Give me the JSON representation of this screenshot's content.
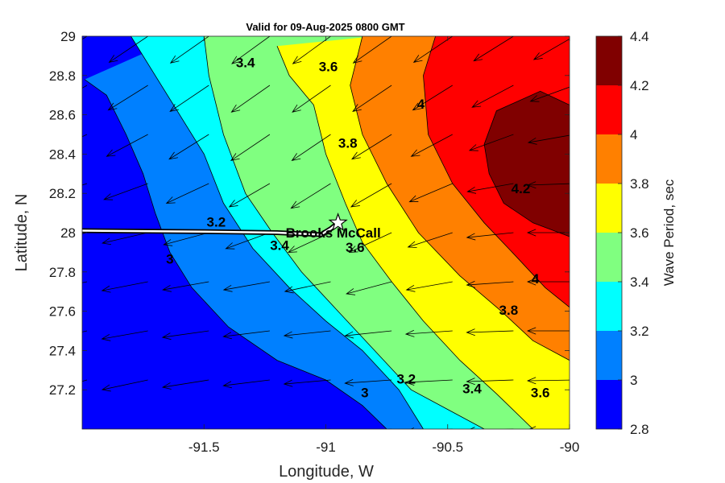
{
  "chart_data": {
    "type": "heatmap",
    "title": "Valid for 09-Aug-2025 0800 GMT",
    "xlabel": "Longitude, W",
    "ylabel": "Latitude, N",
    "colorbar_label": "Wave Period, sec",
    "xlim": [
      -92.0,
      -90.0
    ],
    "ylim": [
      27.0,
      29.0
    ],
    "x_ticks": [
      "-91.5",
      "-91",
      "-90.5",
      "-90"
    ],
    "y_ticks": [
      "27.2",
      "27.4",
      "27.6",
      "27.8",
      "28",
      "28.2",
      "28.4",
      "28.6",
      "28.8",
      "29"
    ],
    "colorbar_ticks": [
      "2.8",
      "3",
      "3.2",
      "3.4",
      "3.6",
      "3.8",
      "4",
      "4.2",
      "4.4"
    ],
    "levels": [
      2.8,
      3.0,
      3.2,
      3.4,
      3.6,
      3.8,
      4.0,
      4.2,
      4.4
    ],
    "colors": [
      "#0000ff",
      "#0080ff",
      "#00ffff",
      "#80ff80",
      "#ffff00",
      "#ff8000",
      "#ff0000",
      "#800000"
    ],
    "contours": [
      {
        "level": 3.0,
        "lon": [
          -91.99,
          -91.9,
          -91.82,
          -91.75,
          -91.7,
          -91.64,
          -91.55,
          -91.4,
          -91.2,
          -91.0,
          -90.85,
          -90.75
        ],
        "lat": [
          28.78,
          28.7,
          28.5,
          28.3,
          28.1,
          27.9,
          27.72,
          27.52,
          27.35,
          27.25,
          27.12,
          27.0
        ]
      },
      {
        "level": 3.2,
        "lon": [
          -91.8,
          -91.7,
          -91.6,
          -91.5,
          -91.42,
          -91.3,
          -91.15,
          -91.0,
          -90.85,
          -90.7,
          -90.6
        ],
        "lat": [
          29.0,
          28.8,
          28.6,
          28.4,
          28.15,
          27.92,
          27.72,
          27.55,
          27.4,
          27.2,
          27.0
        ]
      },
      {
        "level": 3.4,
        "lon": [
          -91.5,
          -91.48,
          -91.42,
          -91.33,
          -91.22,
          -91.1,
          -90.95,
          -90.8,
          -90.65,
          -90.5,
          -90.35
        ],
        "lat": [
          29.0,
          28.8,
          28.5,
          28.2,
          28.0,
          27.8,
          27.6,
          27.4,
          27.2,
          27.1,
          27.0
        ]
      },
      {
        "level": 3.6,
        "lon": [
          -91.2,
          -91.15,
          -91.05,
          -91.0,
          -90.92,
          -90.85,
          -90.73,
          -90.6,
          -90.45,
          -90.3,
          -90.15
        ],
        "lat": [
          28.95,
          28.8,
          28.65,
          28.4,
          28.15,
          27.95,
          27.75,
          27.55,
          27.35,
          27.18,
          27.0
        ]
      },
      {
        "level": 3.8,
        "lon": [
          -90.85,
          -90.9,
          -90.85,
          -90.75,
          -90.62,
          -90.45,
          -90.28,
          -90.15,
          -90.0
        ],
        "lat": [
          29.0,
          28.75,
          28.5,
          28.25,
          28.0,
          27.78,
          27.6,
          27.45,
          27.35
        ]
      },
      {
        "level": 4.0,
        "lon": [
          -90.55,
          -90.6,
          -90.58,
          -90.48,
          -90.35,
          -90.22,
          -90.1,
          -90.0
        ],
        "lat": [
          29.0,
          28.8,
          28.5,
          28.25,
          28.05,
          27.88,
          27.72,
          27.62
        ]
      },
      {
        "level": 4.2,
        "lon": [
          -90.0,
          -90.12,
          -90.3,
          -90.35,
          -90.33,
          -90.27,
          -90.15,
          -90.0
        ],
        "lat": [
          28.65,
          28.72,
          28.62,
          28.45,
          28.3,
          28.15,
          28.05,
          27.98
        ]
      }
    ],
    "contour_labels": [
      {
        "text": "3.4",
        "lon": -91.33,
        "lat": 28.86
      },
      {
        "text": "3.6",
        "lon": -90.99,
        "lat": 28.84
      },
      {
        "text": "4",
        "lon": -90.61,
        "lat": 28.65
      },
      {
        "text": "3.8",
        "lon": -90.91,
        "lat": 28.45
      },
      {
        "text": "4.2",
        "lon": -90.2,
        "lat": 28.22
      },
      {
        "text": "3.2",
        "lon": -91.45,
        "lat": 28.05
      },
      {
        "text": "3",
        "lon": -91.64,
        "lat": 27.86
      },
      {
        "text": "3.4",
        "lon": -91.19,
        "lat": 27.93
      },
      {
        "text": "3.6",
        "lon": -90.88,
        "lat": 27.92
      },
      {
        "text": "4",
        "lon": -90.14,
        "lat": 27.76
      },
      {
        "text": "3.8",
        "lon": -90.25,
        "lat": 27.6
      },
      {
        "text": "3.2",
        "lon": -90.67,
        "lat": 27.25
      },
      {
        "text": "3",
        "lon": -90.84,
        "lat": 27.18
      },
      {
        "text": "3.4",
        "lon": -90.4,
        "lat": 27.2
      },
      {
        "text": "3.6",
        "lon": -90.12,
        "lat": 27.18
      }
    ],
    "station": {
      "name": "Brooks McCall",
      "lon": -90.95,
      "lat": 28.05
    },
    "track": {
      "lon": [
        -92.0,
        -91.5,
        -91.2,
        -91.02,
        -90.98,
        -90.95
      ],
      "lat": [
        28.01,
        28.005,
        28.0,
        27.99,
        28.02,
        28.05
      ]
    },
    "vectors": {
      "lon": [
        -92.0,
        -91.75,
        -91.5,
        -91.25,
        -91.0,
        -90.75,
        -90.5,
        -90.25,
        -90.0
      ],
      "lat": [
        27.0,
        27.25,
        27.5,
        27.75,
        28.0,
        28.25,
        28.5,
        28.75,
        29.0
      ],
      "direction_deg": [
        [
          200,
          195,
          190,
          188,
          185,
          185,
          183,
          182,
          181
        ],
        [
          196,
          192,
          189,
          187,
          185,
          184,
          183,
          182,
          181
        ],
        [
          193,
          190,
          188,
          187,
          186,
          186,
          184,
          182,
          180
        ],
        [
          192,
          191,
          190,
          190,
          192,
          195,
          190,
          184,
          180
        ],
        [
          193,
          193,
          195,
          200,
          205,
          205,
          198,
          186,
          180
        ],
        [
          198,
          200,
          205,
          210,
          212,
          210,
          203,
          190,
          182
        ],
        [
          205,
          208,
          212,
          214,
          214,
          212,
          208,
          200,
          190
        ],
        [
          210,
          212,
          214,
          215,
          215,
          214,
          212,
          208,
          200
        ],
        [
          212,
          214,
          215,
          216,
          216,
          215,
          214,
          212,
          210
        ]
      ]
    },
    "grid": false
  }
}
